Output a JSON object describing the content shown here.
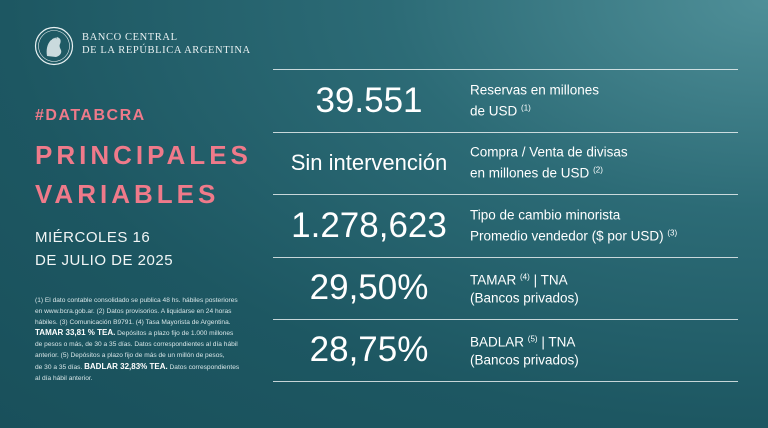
{
  "brand": {
    "line1": "BANCO CENTRAL",
    "line2": "DE LA REPÚBLICA ARGENTINA"
  },
  "hashtag": "#DATABCRA",
  "headline": {
    "line1": "PRINCIPALES",
    "line2": "VARIABLES"
  },
  "date": {
    "line1": "MIÉRCOLES 16",
    "line2": "DE JULIO DE 2025"
  },
  "rows": [
    {
      "value": "39.551",
      "label1": "Reservas en millones",
      "label2": "de USD",
      "note2": "(1)"
    },
    {
      "value": "Sin intervención",
      "label1": "Compra / Venta de divisas",
      "label2": "en millones de USD",
      "note2": "(2)"
    },
    {
      "value": "1.278,623",
      "label1": "Tipo de cambio minorista",
      "label2": "Promedio vendedor ($ por USD)",
      "note2": "(3)"
    },
    {
      "value": "29,50%",
      "label1a": "TAMAR",
      "note1": "(4)",
      "label1b": "| TNA",
      "label2": "(Bancos privados)"
    },
    {
      "value": "28,75%",
      "label1a": "BADLAR",
      "note1": "(5)",
      "label1b": "| TNA",
      "label2": "(Bancos privados)"
    }
  ],
  "notes": {
    "l1": "(1) El dato contable consolidado se publica 48 hs. hábiles posteriores",
    "l2": "en www.bcra.gob.ar. (2) Datos provisorios. A liquidarse en 24 horas",
    "l3": "hábiles. (3) Comunicación B9791. (4) Tasa Mayorista de Argentina.",
    "l4_bold": "TAMAR 33,81 % TEA.",
    "l4_rest": " Depósitos a plazo fijo de 1.000 millones",
    "l5": "de pesos o más, de 30 a 35 días. Datos correspondientes al día hábil",
    "l6": "anterior. (5) Depósitos a plazo fijo de más de un millón de pesos,",
    "l7_pre": "de 30 a 35 días. ",
    "l7_bold": "BADLAR 32,83% TEA.",
    "l7_rest": " Datos correspondientes",
    "l8": "al día hábil anterior."
  }
}
